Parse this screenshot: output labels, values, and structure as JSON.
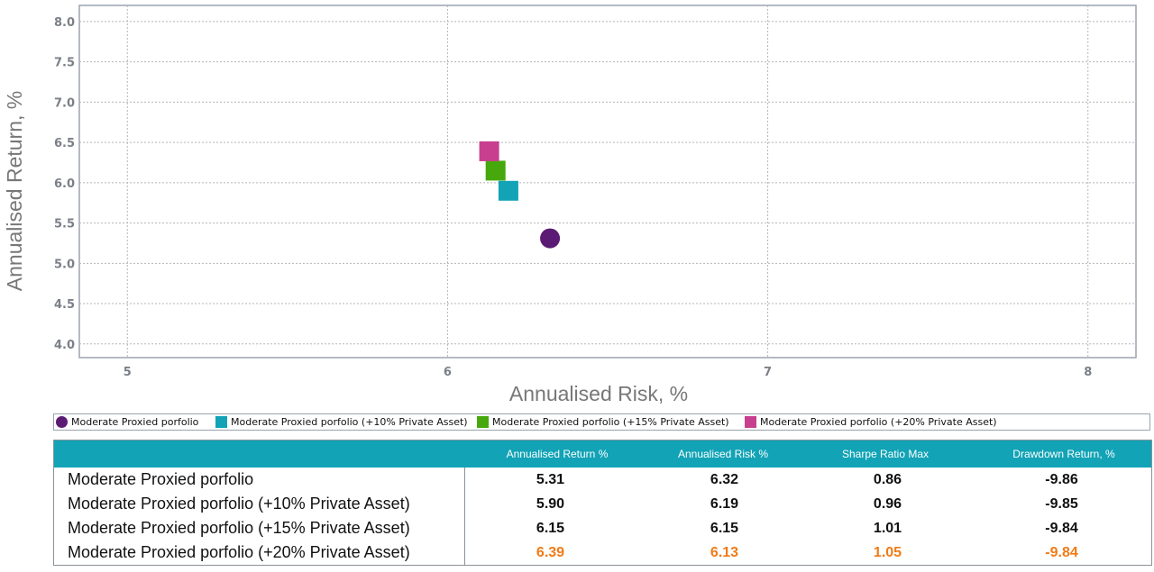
{
  "chart_data": {
    "type": "scatter",
    "title": "",
    "xlabel": "Annualised Risk, %",
    "ylabel": "Annualised Return, %",
    "xlim": [
      4.85,
      8.15
    ],
    "ylim": [
      3.83,
      8.2
    ],
    "x_ticks": [
      "5",
      "6",
      "7",
      "8"
    ],
    "x_tick_values": [
      5,
      6,
      7,
      8
    ],
    "y_ticks": [
      "4.0",
      "4.5",
      "5.0",
      "5.5",
      "6.0",
      "6.5",
      "7.0",
      "7.5",
      "8.0"
    ],
    "y_tick_values": [
      4.0,
      4.5,
      5.0,
      5.5,
      6.0,
      6.5,
      7.0,
      7.5,
      8.0
    ],
    "grid": true,
    "series": [
      {
        "name": "Moderate Proxied porfolio",
        "marker": "circle",
        "color": "#5b1a74",
        "x": 6.32,
        "y": 5.31
      },
      {
        "name": "Moderate Proxied porfolio (+10% Private Asset)",
        "marker": "square",
        "color": "#12a3b6",
        "x": 6.19,
        "y": 5.9
      },
      {
        "name": "Moderate Proxied porfolio (+15% Private Asset)",
        "marker": "square",
        "color": "#46a80c",
        "x": 6.15,
        "y": 6.15
      },
      {
        "name": "Moderate Proxied porfolio (+20% Private Asset)",
        "marker": "square",
        "color": "#c83f8f",
        "x": 6.13,
        "y": 6.39
      }
    ]
  },
  "table": {
    "headers": [
      "Annualised Return %",
      "Annualised Risk %",
      "Sharpe Ratio Max",
      "Drawdown Return, %"
    ],
    "rows": [
      {
        "label": "Moderate Proxied porfolio",
        "values": [
          "5.31",
          "6.32",
          "0.86",
          "-9.86"
        ]
      },
      {
        "label": "Moderate Proxied porfolio (+10% Private Asset)",
        "values": [
          "5.90",
          "6.19",
          "0.96",
          "-9.85"
        ]
      },
      {
        "label": "Moderate Proxied porfolio (+15% Private Asset)",
        "values": [
          "6.15",
          "6.15",
          "1.01",
          "-9.84"
        ]
      },
      {
        "label": "Moderate Proxied porfolio (+20% Private Asset)",
        "values": [
          "6.39",
          "6.13",
          "1.05",
          "-9.84"
        ]
      }
    ],
    "highlight_color": "#f07b16"
  }
}
